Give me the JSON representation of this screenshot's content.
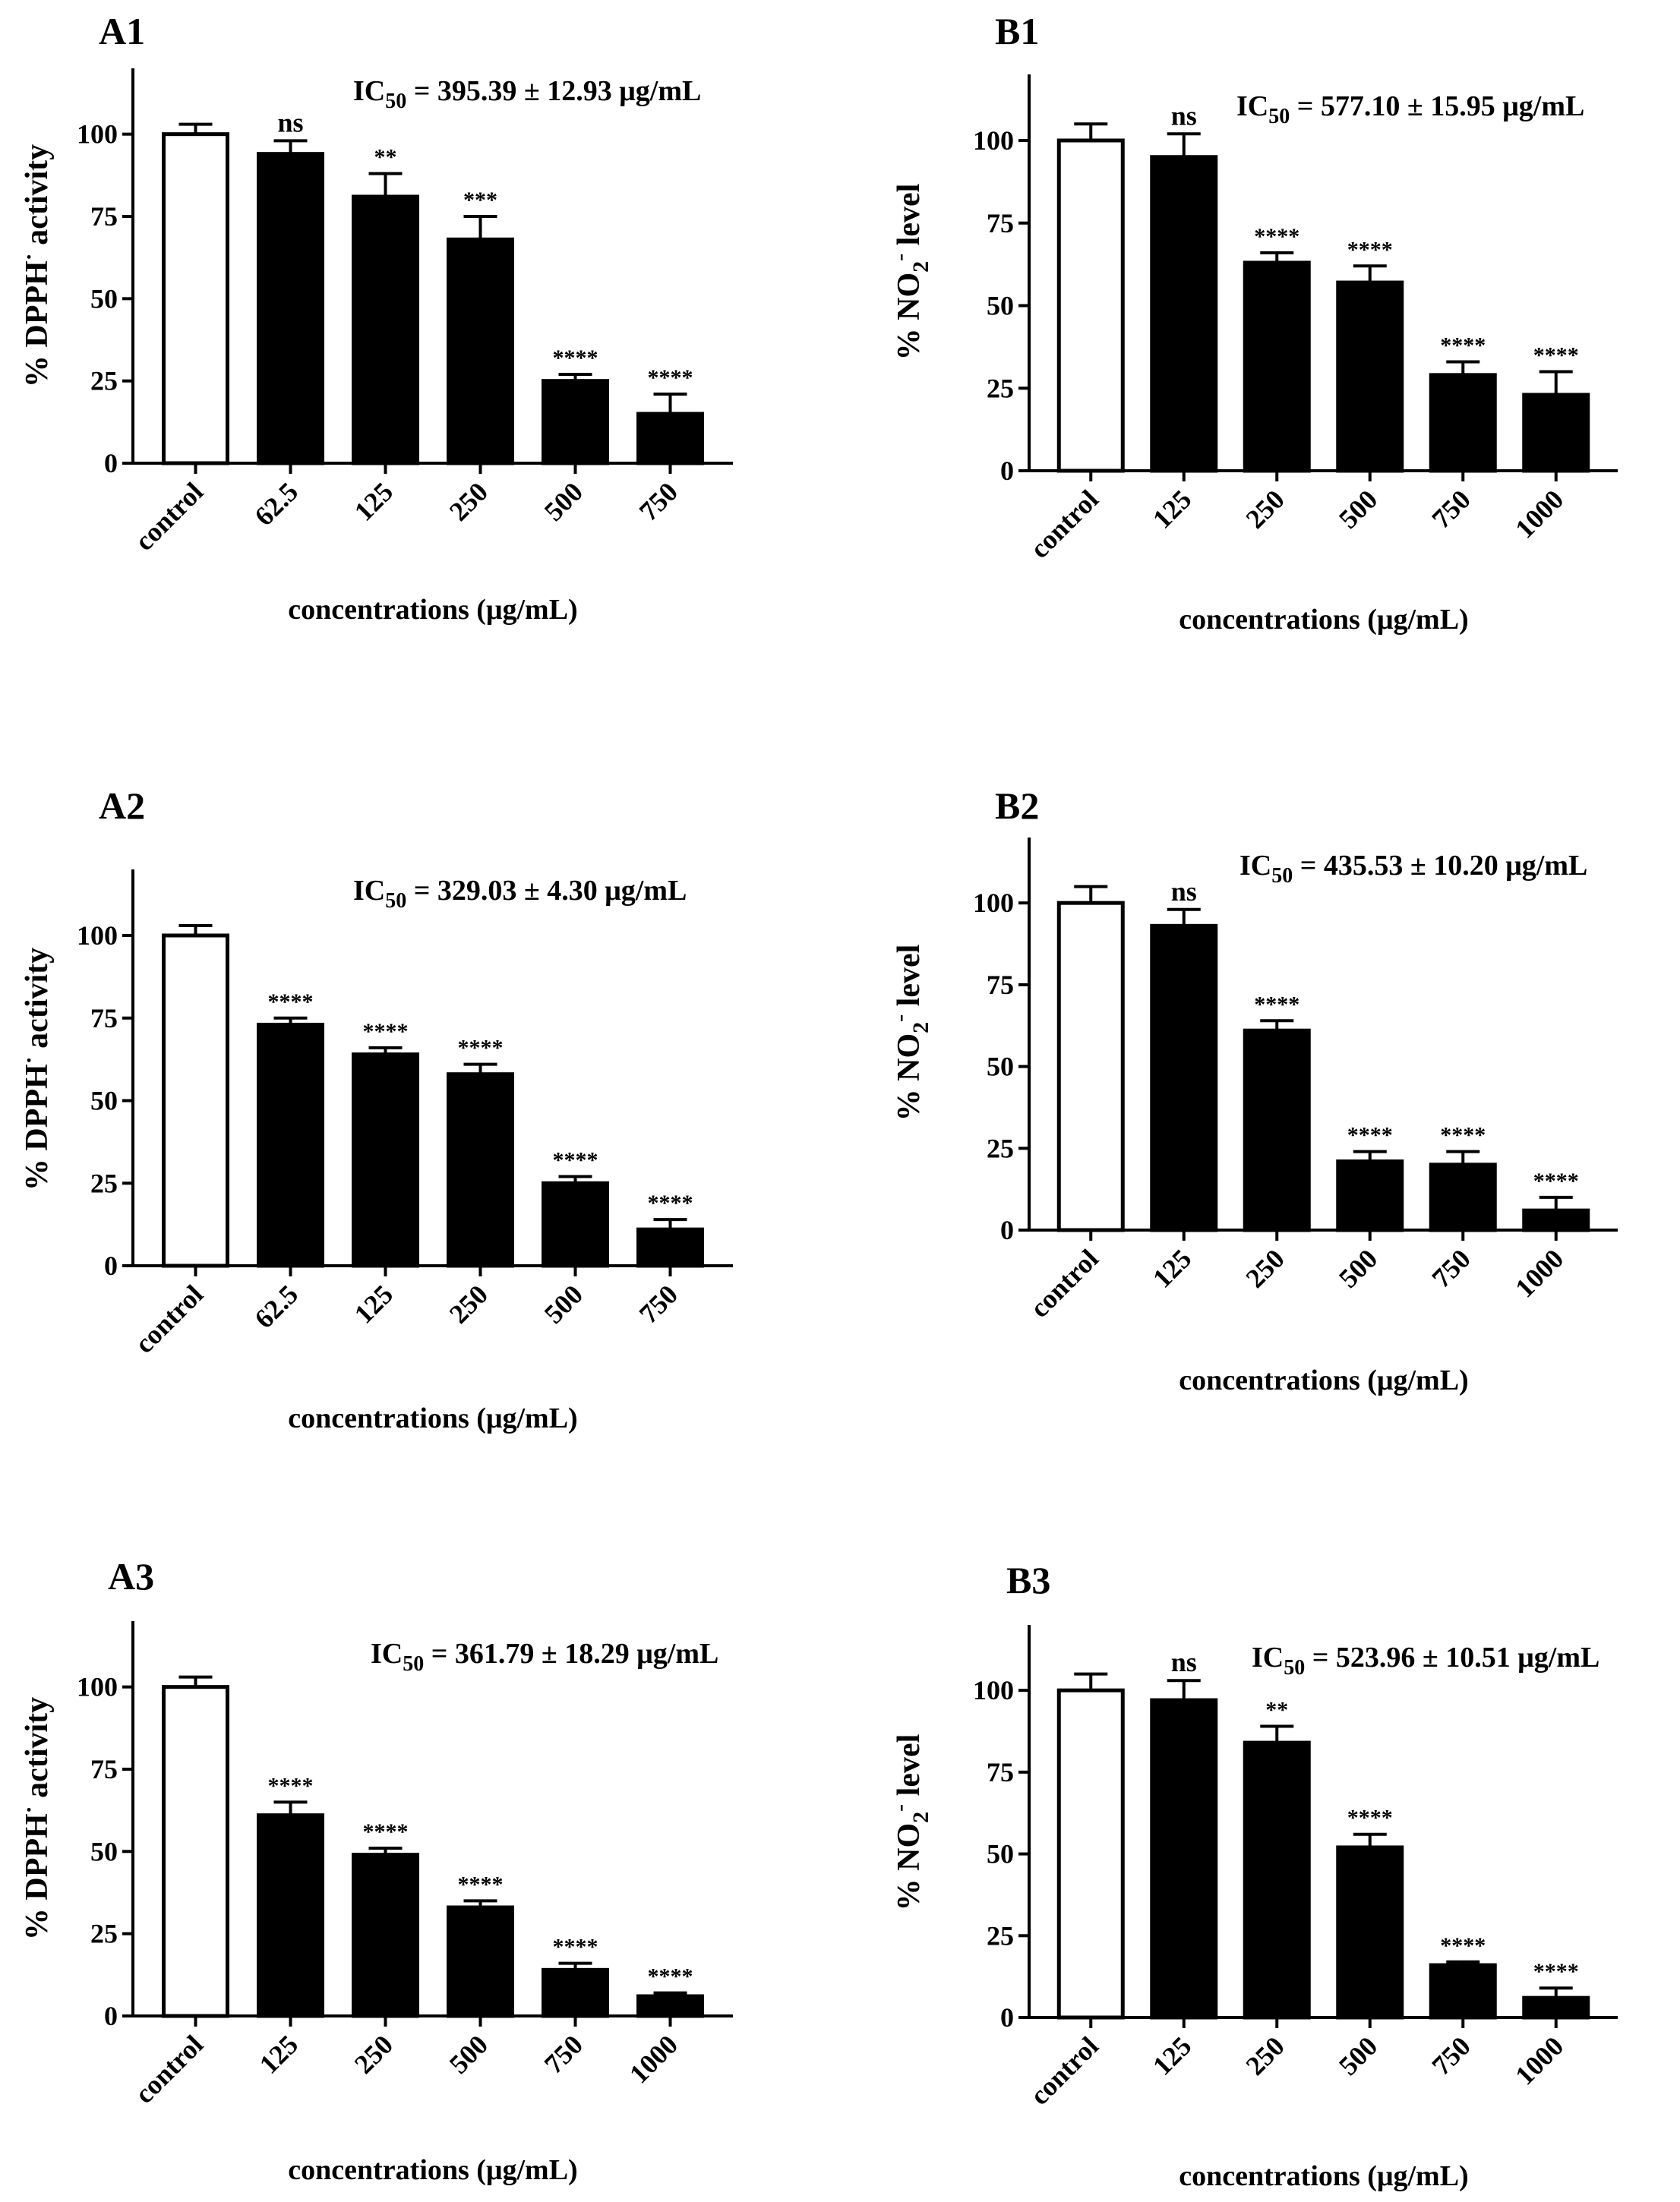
{
  "colors": {
    "filled_bar": "#000000",
    "control_bar": "#ffffff",
    "axis": "#000000"
  },
  "chart_data": [
    {
      "panel": "A1",
      "type": "bar",
      "title": "A1",
      "ic50": {
        "prefix": "IC",
        "sub": "50",
        "text": "= 395.39 ± 12.93 μg/mL"
      },
      "xlabel": "concentrations (μg/mL)",
      "ylabel": {
        "main": "% DPPH",
        "sup": "·",
        "rest": " activity"
      },
      "ylim": [
        0,
        120
      ],
      "yticks": [
        0,
        25,
        50,
        75,
        100
      ],
      "categories": [
        "control",
        "62.5",
        "125",
        "250",
        "500",
        "750"
      ],
      "values": [
        100,
        94,
        81,
        68,
        25,
        15
      ],
      "errors": [
        3,
        4,
        7,
        7,
        2,
        6
      ],
      "significance": [
        "",
        "ns",
        "**",
        "***",
        "****",
        "****"
      ]
    },
    {
      "panel": "B1",
      "type": "bar",
      "title": "B1",
      "ic50": {
        "prefix": "IC",
        "sub": "50",
        "text": "= 577.10 ± 15.95 μg/mL"
      },
      "xlabel": "concentrations (μg/mL)",
      "ylabel": {
        "main": "% NO",
        "sub": "2",
        "sup": "-",
        "rest": " level"
      },
      "ylim": [
        0,
        120
      ],
      "yticks": [
        0,
        25,
        50,
        75,
        100
      ],
      "categories": [
        "control",
        "125",
        "250",
        "500",
        "750",
        "1000"
      ],
      "values": [
        100,
        95,
        63,
        57,
        29,
        23
      ],
      "errors": [
        5,
        7,
        3,
        5,
        4,
        7
      ],
      "significance": [
        "",
        "ns",
        "****",
        "****",
        "****",
        "****"
      ]
    },
    {
      "panel": "A2",
      "type": "bar",
      "title": "A2",
      "ic50": {
        "prefix": "IC",
        "sub": "50",
        "text": "= 329.03 ± 4.30 μg/mL"
      },
      "xlabel": "concentrations (μg/mL)",
      "ylabel": {
        "main": "% DPPH",
        "sup": "·",
        "rest": " activity"
      },
      "ylim": [
        0,
        120
      ],
      "yticks": [
        0,
        25,
        50,
        75,
        100
      ],
      "categories": [
        "control",
        "62.5",
        "125",
        "250",
        "500",
        "750"
      ],
      "values": [
        100,
        73,
        64,
        58,
        25,
        11
      ],
      "errors": [
        3,
        2,
        2,
        3,
        2,
        3
      ],
      "significance": [
        "",
        "****",
        "****",
        "****",
        "****",
        "****"
      ]
    },
    {
      "panel": "B2",
      "type": "bar",
      "title": "B2",
      "ic50": {
        "prefix": "IC",
        "sub": "50",
        "text": "= 435.53 ± 10.20 μg/mL"
      },
      "xlabel": "concentrations (μg/mL)",
      "ylabel": {
        "main": "% NO",
        "sub": "2",
        "sup": "-",
        "rest": " level"
      },
      "ylim": [
        0,
        120
      ],
      "yticks": [
        0,
        25,
        50,
        75,
        100
      ],
      "categories": [
        "control",
        "125",
        "250",
        "500",
        "750",
        "1000"
      ],
      "values": [
        100,
        93,
        61,
        21,
        20,
        6
      ],
      "errors": [
        5,
        5,
        3,
        3,
        4,
        4
      ],
      "significance": [
        "",
        "ns",
        "****",
        "****",
        "****",
        "****"
      ]
    },
    {
      "panel": "A3",
      "type": "bar",
      "title": "A3",
      "ic50": {
        "prefix": "IC",
        "sub": "50",
        "text": "= 361.79 ± 18.29 μg/mL"
      },
      "xlabel": "concentrations (μg/mL)",
      "ylabel": {
        "main": "% DPPH",
        "sup": "·",
        "rest": " activity"
      },
      "ylim": [
        0,
        120
      ],
      "yticks": [
        0,
        25,
        50,
        75,
        100
      ],
      "categories": [
        "control",
        "125",
        "250",
        "500",
        "750",
        "1000"
      ],
      "values": [
        100,
        61,
        49,
        33,
        14,
        6
      ],
      "errors": [
        3,
        4,
        2,
        2,
        2,
        1
      ],
      "significance": [
        "",
        "****",
        "****",
        "****",
        "****",
        "****"
      ]
    },
    {
      "panel": "B3",
      "type": "bar",
      "title": "B3",
      "ic50": {
        "prefix": "IC",
        "sub": "50",
        "text": "= 523.96 ± 10.51 μg/mL"
      },
      "xlabel": "concentrations (μg/mL)",
      "ylabel": {
        "main": "% NO",
        "sub": "2",
        "sup": "-",
        "rest": " level"
      },
      "ylim": [
        0,
        120
      ],
      "yticks": [
        0,
        25,
        50,
        75,
        100
      ],
      "categories": [
        "control",
        "125",
        "250",
        "500",
        "750",
        "1000"
      ],
      "values": [
        100,
        97,
        84,
        52,
        16,
        6
      ],
      "errors": [
        5,
        6,
        5,
        4,
        1,
        3
      ],
      "significance": [
        "",
        "ns",
        "**",
        "****",
        "****",
        "****"
      ]
    }
  ]
}
